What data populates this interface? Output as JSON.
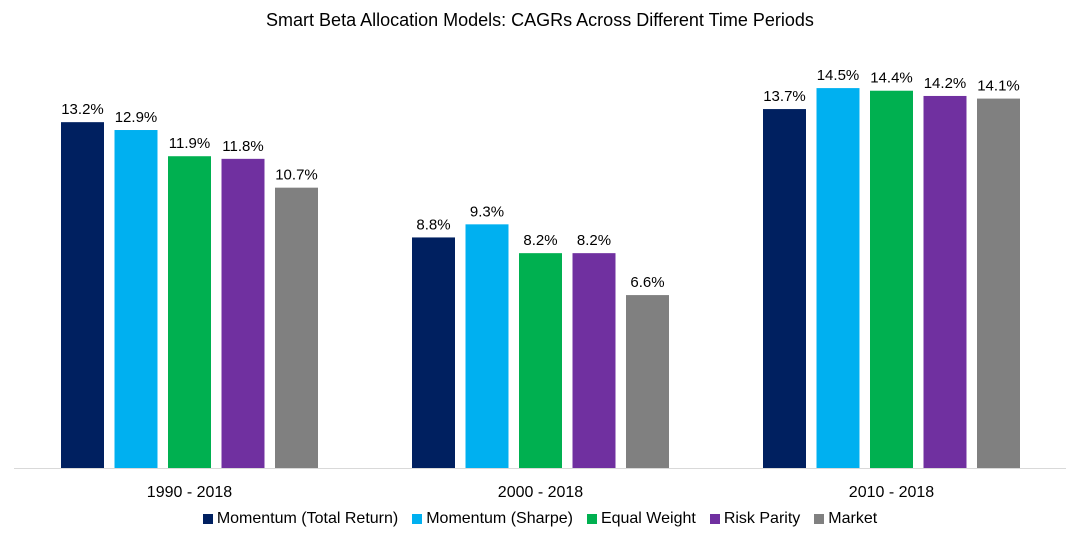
{
  "chart_data": {
    "type": "bar",
    "title": "Smart Beta Allocation Models: CAGRs Across Different Time Periods",
    "categories": [
      "1990 - 2018",
      "2000 - 2018",
      "2010 - 2018"
    ],
    "series": [
      {
        "name": "Momentum (Total Return)",
        "color": "#002060",
        "values": [
          13.2,
          8.8,
          13.7
        ]
      },
      {
        "name": "Momentum (Sharpe)",
        "color": "#00B0F0",
        "values": [
          12.9,
          9.3,
          14.5
        ]
      },
      {
        "name": "Equal Weight",
        "color": "#00B050",
        "values": [
          11.9,
          8.2,
          14.4
        ]
      },
      {
        "name": "Risk Parity",
        "color": "#7030A0",
        "values": [
          11.8,
          8.2,
          14.2
        ]
      },
      {
        "name": "Market",
        "color": "#808080",
        "values": [
          10.7,
          6.6,
          14.1
        ]
      }
    ],
    "value_format": "percent_1dp",
    "ylim": [
      0,
      17.8
    ],
    "grid": false,
    "legend": "bottom",
    "xlabel": "",
    "ylabel": ""
  }
}
